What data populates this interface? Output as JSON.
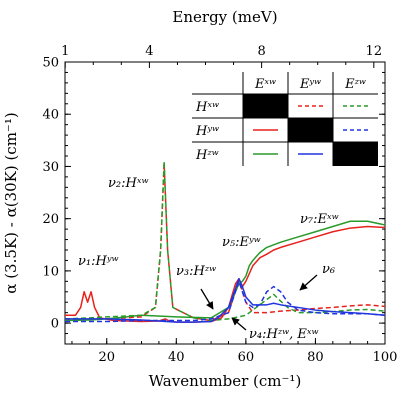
{
  "chart_data": {
    "type": "line",
    "xlabel": "Wavenumber (cm⁻¹)",
    "ylabel": "α (3.5K) - α(30K) (cm⁻¹)",
    "top_xlabel": "Energy (meV)",
    "xlim": [
      8,
      100
    ],
    "ylim": [
      -4,
      50
    ],
    "x_ticks": [
      20,
      40,
      60,
      80,
      100
    ],
    "y_ticks": [
      0,
      10,
      20,
      30,
      40,
      50
    ],
    "top_ticks": [
      1,
      4,
      8,
      12
    ],
    "top_tick_conversion_cm1_per_meV": 8.0655,
    "grid": false,
    "colors": {
      "red": "#e8221c",
      "green": "#2a9a2a",
      "blue": "#2035e0",
      "black": "#000000"
    },
    "series": [
      {
        "color": "#e8221c",
        "dash": "solid",
        "x": [
          8,
          11,
          12.5,
          13.5,
          14.5,
          15.5,
          16.5,
          18,
          22,
          30,
          35,
          36.8,
          38,
          40,
          45,
          50,
          53,
          55,
          57,
          58,
          59,
          60,
          61,
          62,
          64,
          66,
          68,
          70,
          75,
          80,
          85,
          90,
          95,
          100
        ],
        "y": [
          1.5,
          1.5,
          3,
          6,
          4,
          6,
          3,
          1,
          0.5,
          0.3,
          0.4,
          0.8,
          0.4,
          0.2,
          0.2,
          0.3,
          1,
          3,
          7.5,
          8.5,
          7,
          8,
          9.5,
          11,
          12.5,
          13.2,
          14,
          14.5,
          15.5,
          16.5,
          17.5,
          18.2,
          18.5,
          18.3
        ]
      },
      {
        "color": "#e8221c",
        "dash": "dashed",
        "x": [
          8,
          15,
          20,
          30,
          34,
          35.5,
          36.5,
          37.5,
          39,
          45,
          50,
          55,
          58,
          60,
          62,
          66,
          70,
          75,
          80,
          85,
          90,
          95,
          100
        ],
        "y": [
          0.5,
          0.8,
          0.8,
          1.2,
          3,
          14,
          30.5,
          14,
          3,
          1,
          0.5,
          2,
          8.2,
          4,
          2,
          2,
          2.3,
          2.5,
          2.8,
          3,
          3.3,
          3.5,
          3.2
        ]
      },
      {
        "color": "#2a9a2a",
        "dash": "solid",
        "x": [
          8,
          15,
          20,
          30,
          40,
          50,
          55,
          57,
          58,
          59,
          60,
          61,
          62,
          64,
          66,
          68,
          70,
          75,
          80,
          85,
          90,
          95,
          100
        ],
        "y": [
          0.5,
          0.6,
          0.8,
          1.5,
          1.2,
          1,
          3,
          6,
          7.5,
          8,
          9,
          11,
          12,
          13.5,
          14.5,
          15,
          15.5,
          16.5,
          17.5,
          18.5,
          19.5,
          19.5,
          18.8
        ]
      },
      {
        "color": "#2a9a2a",
        "dash": "dashed",
        "x": [
          8,
          15,
          20,
          30,
          34,
          35.5,
          36.5,
          37.5,
          39,
          45,
          50,
          55,
          60,
          63,
          66,
          68,
          70,
          72,
          75,
          80,
          85,
          90,
          95,
          100
        ],
        "y": [
          0.8,
          1,
          1.2,
          1.5,
          3,
          14,
          31,
          14,
          3,
          1,
          0.5,
          0.8,
          1.5,
          3,
          4.5,
          5.5,
          4.2,
          3,
          2,
          2,
          2.2,
          2.5,
          2.6,
          2.3
        ]
      },
      {
        "color": "#2035e0",
        "dash": "solid",
        "x": [
          8,
          20,
          30,
          40,
          45,
          50,
          52,
          55,
          57,
          58,
          59,
          60,
          62,
          66,
          68,
          70,
          75,
          80,
          85,
          90,
          95,
          100
        ],
        "y": [
          0.8,
          0.8,
          0.6,
          0.2,
          0.2,
          0.3,
          1,
          3,
          6.5,
          8.5,
          7,
          5,
          3.5,
          3.5,
          3.8,
          3.5,
          3,
          2.5,
          2.2,
          2,
          1.8,
          1.5
        ]
      },
      {
        "color": "#2035e0",
        "dash": "dashed",
        "x": [
          8,
          20,
          30,
          40,
          45,
          50,
          55,
          58,
          60,
          62,
          64,
          66,
          68,
          70,
          72,
          75,
          80,
          85,
          90,
          95,
          100
        ],
        "y": [
          0.3,
          0.3,
          0.5,
          0.5,
          0.5,
          0.8,
          2,
          8,
          4,
          3,
          3.5,
          6,
          7,
          6,
          4,
          2.5,
          2,
          1.8,
          1.8,
          1.8,
          1.5
        ]
      }
    ],
    "annotations": [
      {
        "label": "ν₁:Hʸʷ"
      },
      {
        "label": "ν₂:Hˣʷ"
      },
      {
        "label": "ν₃:Hᶻʷ"
      },
      {
        "label": "ν₅:Eʸʷ"
      },
      {
        "label": "ν₆"
      },
      {
        "label": "ν₇:Eˣʷ"
      },
      {
        "label": "ν₄:Hᶻʷ, Eˣʷ"
      }
    ],
    "legend_table": {
      "position": "top-right",
      "columns": [
        "Eˣʷ",
        "Eʸʷ",
        "Eᶻʷ"
      ],
      "rows": [
        "Hˣʷ",
        "Hʸʷ",
        "Hᶻʷ"
      ],
      "cells": [
        [
          "black",
          "red-dashed",
          "green-dashed"
        ],
        [
          "red-solid",
          "black",
          "blue-dashed"
        ],
        [
          "green-solid",
          "blue-solid",
          "black"
        ]
      ]
    }
  }
}
